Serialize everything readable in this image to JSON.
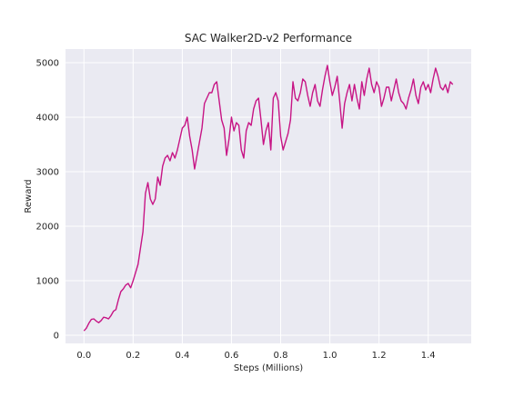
{
  "chart_data": {
    "type": "line",
    "title": "SAC Walker2D-v2 Performance",
    "xlabel": "Steps (Millions)",
    "ylabel": "Reward",
    "xlim": [
      -0.075,
      1.575
    ],
    "ylim": [
      -150,
      5250
    ],
    "xticks": [
      0.0,
      0.2,
      0.4,
      0.6,
      0.8,
      1.0,
      1.2,
      1.4
    ],
    "xtick_labels": [
      "0.0",
      "0.2",
      "0.4",
      "0.6",
      "0.8",
      "1.0",
      "1.2",
      "1.4"
    ],
    "yticks": [
      0,
      1000,
      2000,
      3000,
      4000,
      5000
    ],
    "ytick_labels": [
      "0",
      "1000",
      "2000",
      "3000",
      "4000",
      "5000"
    ],
    "grid": true,
    "background": "#eaeaf2",
    "grid_color": "#ffffff",
    "series": [
      {
        "color": "#c71585",
        "x": [
          0.0,
          0.01,
          0.02,
          0.03,
          0.04,
          0.05,
          0.06,
          0.07,
          0.08,
          0.09,
          0.1,
          0.11,
          0.12,
          0.13,
          0.14,
          0.15,
          0.16,
          0.17,
          0.18,
          0.19,
          0.2,
          0.21,
          0.22,
          0.23,
          0.24,
          0.25,
          0.26,
          0.27,
          0.28,
          0.29,
          0.3,
          0.31,
          0.32,
          0.33,
          0.34,
          0.35,
          0.36,
          0.37,
          0.38,
          0.39,
          0.4,
          0.41,
          0.42,
          0.43,
          0.44,
          0.45,
          0.46,
          0.47,
          0.48,
          0.49,
          0.5,
          0.51,
          0.52,
          0.53,
          0.54,
          0.55,
          0.56,
          0.57,
          0.58,
          0.59,
          0.6,
          0.61,
          0.62,
          0.63,
          0.64,
          0.65,
          0.66,
          0.67,
          0.68,
          0.69,
          0.7,
          0.71,
          0.72,
          0.73,
          0.74,
          0.75,
          0.76,
          0.77,
          0.78,
          0.79,
          0.8,
          0.81,
          0.82,
          0.83,
          0.84,
          0.85,
          0.86,
          0.87,
          0.88,
          0.89,
          0.9,
          0.91,
          0.92,
          0.93,
          0.94,
          0.95,
          0.96,
          0.97,
          0.98,
          0.99,
          1.0,
          1.01,
          1.02,
          1.03,
          1.04,
          1.05,
          1.06,
          1.07,
          1.08,
          1.09,
          1.1,
          1.11,
          1.12,
          1.13,
          1.14,
          1.15,
          1.16,
          1.17,
          1.18,
          1.19,
          1.2,
          1.21,
          1.22,
          1.23,
          1.24,
          1.25,
          1.26,
          1.27,
          1.28,
          1.29,
          1.3,
          1.31,
          1.32,
          1.33,
          1.34,
          1.35,
          1.36,
          1.37,
          1.38,
          1.39,
          1.4,
          1.41,
          1.42,
          1.43,
          1.44,
          1.45,
          1.46,
          1.47,
          1.48,
          1.49,
          1.5
        ],
        "y": [
          80,
          130,
          220,
          290,
          300,
          260,
          230,
          270,
          330,
          320,
          300,
          360,
          440,
          470,
          650,
          800,
          850,
          920,
          950,
          870,
          1000,
          1150,
          1300,
          1600,
          1900,
          2600,
          2800,
          2500,
          2400,
          2500,
          2900,
          2750,
          3100,
          3250,
          3300,
          3200,
          3350,
          3250,
          3400,
          3600,
          3800,
          3850,
          4000,
          3650,
          3400,
          3050,
          3300,
          3550,
          3800,
          4250,
          4350,
          4450,
          4450,
          4600,
          4650,
          4300,
          3950,
          3800,
          3300,
          3600,
          4000,
          3750,
          3900,
          3850,
          3400,
          3250,
          3750,
          3900,
          3850,
          4150,
          4300,
          4350,
          3950,
          3500,
          3750,
          3900,
          3400,
          4350,
          4450,
          4300,
          3650,
          3400,
          3550,
          3700,
          3950,
          4650,
          4350,
          4300,
          4450,
          4700,
          4650,
          4400,
          4200,
          4450,
          4600,
          4300,
          4200,
          4500,
          4750,
          4950,
          4650,
          4400,
          4550,
          4750,
          4300,
          3800,
          4250,
          4450,
          4600,
          4300,
          4600,
          4350,
          4150,
          4650,
          4400,
          4700,
          4900,
          4600,
          4450,
          4650,
          4550,
          4200,
          4350,
          4550,
          4550,
          4300,
          4500,
          4700,
          4450,
          4300,
          4250,
          4150,
          4350,
          4500,
          4700,
          4400,
          4250,
          4550,
          4650,
          4500,
          4600,
          4450,
          4700,
          4900,
          4750,
          4550,
          4500,
          4600,
          4450,
          4650,
          4600
        ]
      }
    ]
  }
}
